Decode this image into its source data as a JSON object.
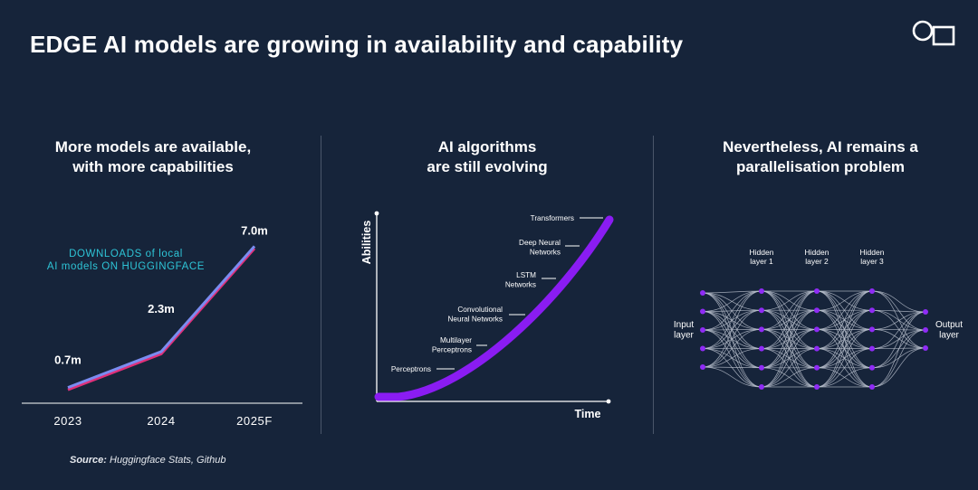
{
  "slide": {
    "title": "EDGE AI models are growing in availability and capability"
  },
  "panels": [
    {
      "title_line1": "More models are available,",
      "title_line2": "with more capabilities"
    },
    {
      "title_line1": "AI algorithms",
      "title_line2": "are still evolving"
    },
    {
      "title_line1": "Nevertheless, AI remains a",
      "title_line2": "parallelisation problem"
    }
  ],
  "source": {
    "label": "Source:",
    "text": "Huggingface Stats, Github"
  },
  "colors": {
    "background": "#16243a",
    "cyan": "#2ec4d6",
    "line_blue": "#7b8cf0",
    "line_pink": "#e0307a",
    "purple": "#8a1cf2",
    "node_purple": "#8f2cf5",
    "network_line": "#b8bfcc"
  },
  "chart_data": [
    {
      "type": "line",
      "title": "DOWNLOADS of local AI models ON HUGGINGFACE",
      "annotation_line1": "DOWNLOADS of local",
      "annotation_line2": "AI models ON HUGGINGFACE",
      "categories": [
        "2023",
        "2024",
        "2025F"
      ],
      "values": [
        0.7,
        2.3,
        7.0
      ],
      "data_labels": [
        "0.7m",
        "2.3m",
        "7.0m"
      ],
      "ylim": [
        0,
        7.5
      ],
      "xlabel": "",
      "ylabel": "",
      "grid": false
    },
    {
      "type": "line",
      "title": "",
      "xlabel": "Time",
      "ylabel": "Abilities",
      "curve": "exponential",
      "stages": [
        "Perceptrons",
        "Multilayer Perceptrons",
        "Convolutional Neural Networks",
        "LSTM Networks",
        "Deep Neural Networks",
        "Transformers"
      ],
      "stage_labels": [
        [
          "Perceptrons"
        ],
        [
          "Multilayer",
          "Perceptrons"
        ],
        [
          "Convolutional",
          "Neural Networks"
        ],
        [
          "LSTM",
          "Networks"
        ],
        [
          "Deep Neural",
          "Networks"
        ],
        [
          "Transformers"
        ]
      ]
    }
  ],
  "network": {
    "input_label": [
      "Input",
      "layer"
    ],
    "output_label": [
      "Output",
      "layer"
    ],
    "hidden_layers": [
      {
        "label": [
          "Hidden",
          "layer 1"
        ],
        "nodes": 6
      },
      {
        "label": [
          "Hidden",
          "layer 2"
        ],
        "nodes": 6
      },
      {
        "label": [
          "Hidden",
          "layer 3"
        ],
        "nodes": 6
      }
    ],
    "input_nodes": 5,
    "output_nodes": 3
  }
}
